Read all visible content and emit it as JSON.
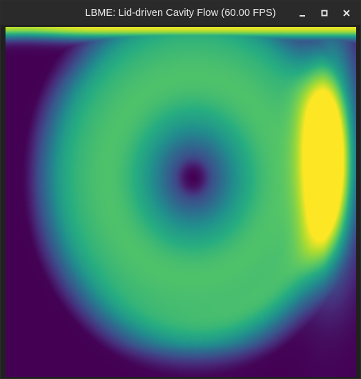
{
  "window": {
    "title": "LBME: Lid-driven Cavity Flow (60.00 FPS)",
    "controls": {
      "minimize_icon": "minimize-icon",
      "maximize_icon": "maximize-icon",
      "close_icon": "close-icon"
    }
  },
  "colors": {
    "titlebar": "#2a2a2a",
    "title_text": "#e8e8e8",
    "colormap": "viridis"
  }
}
